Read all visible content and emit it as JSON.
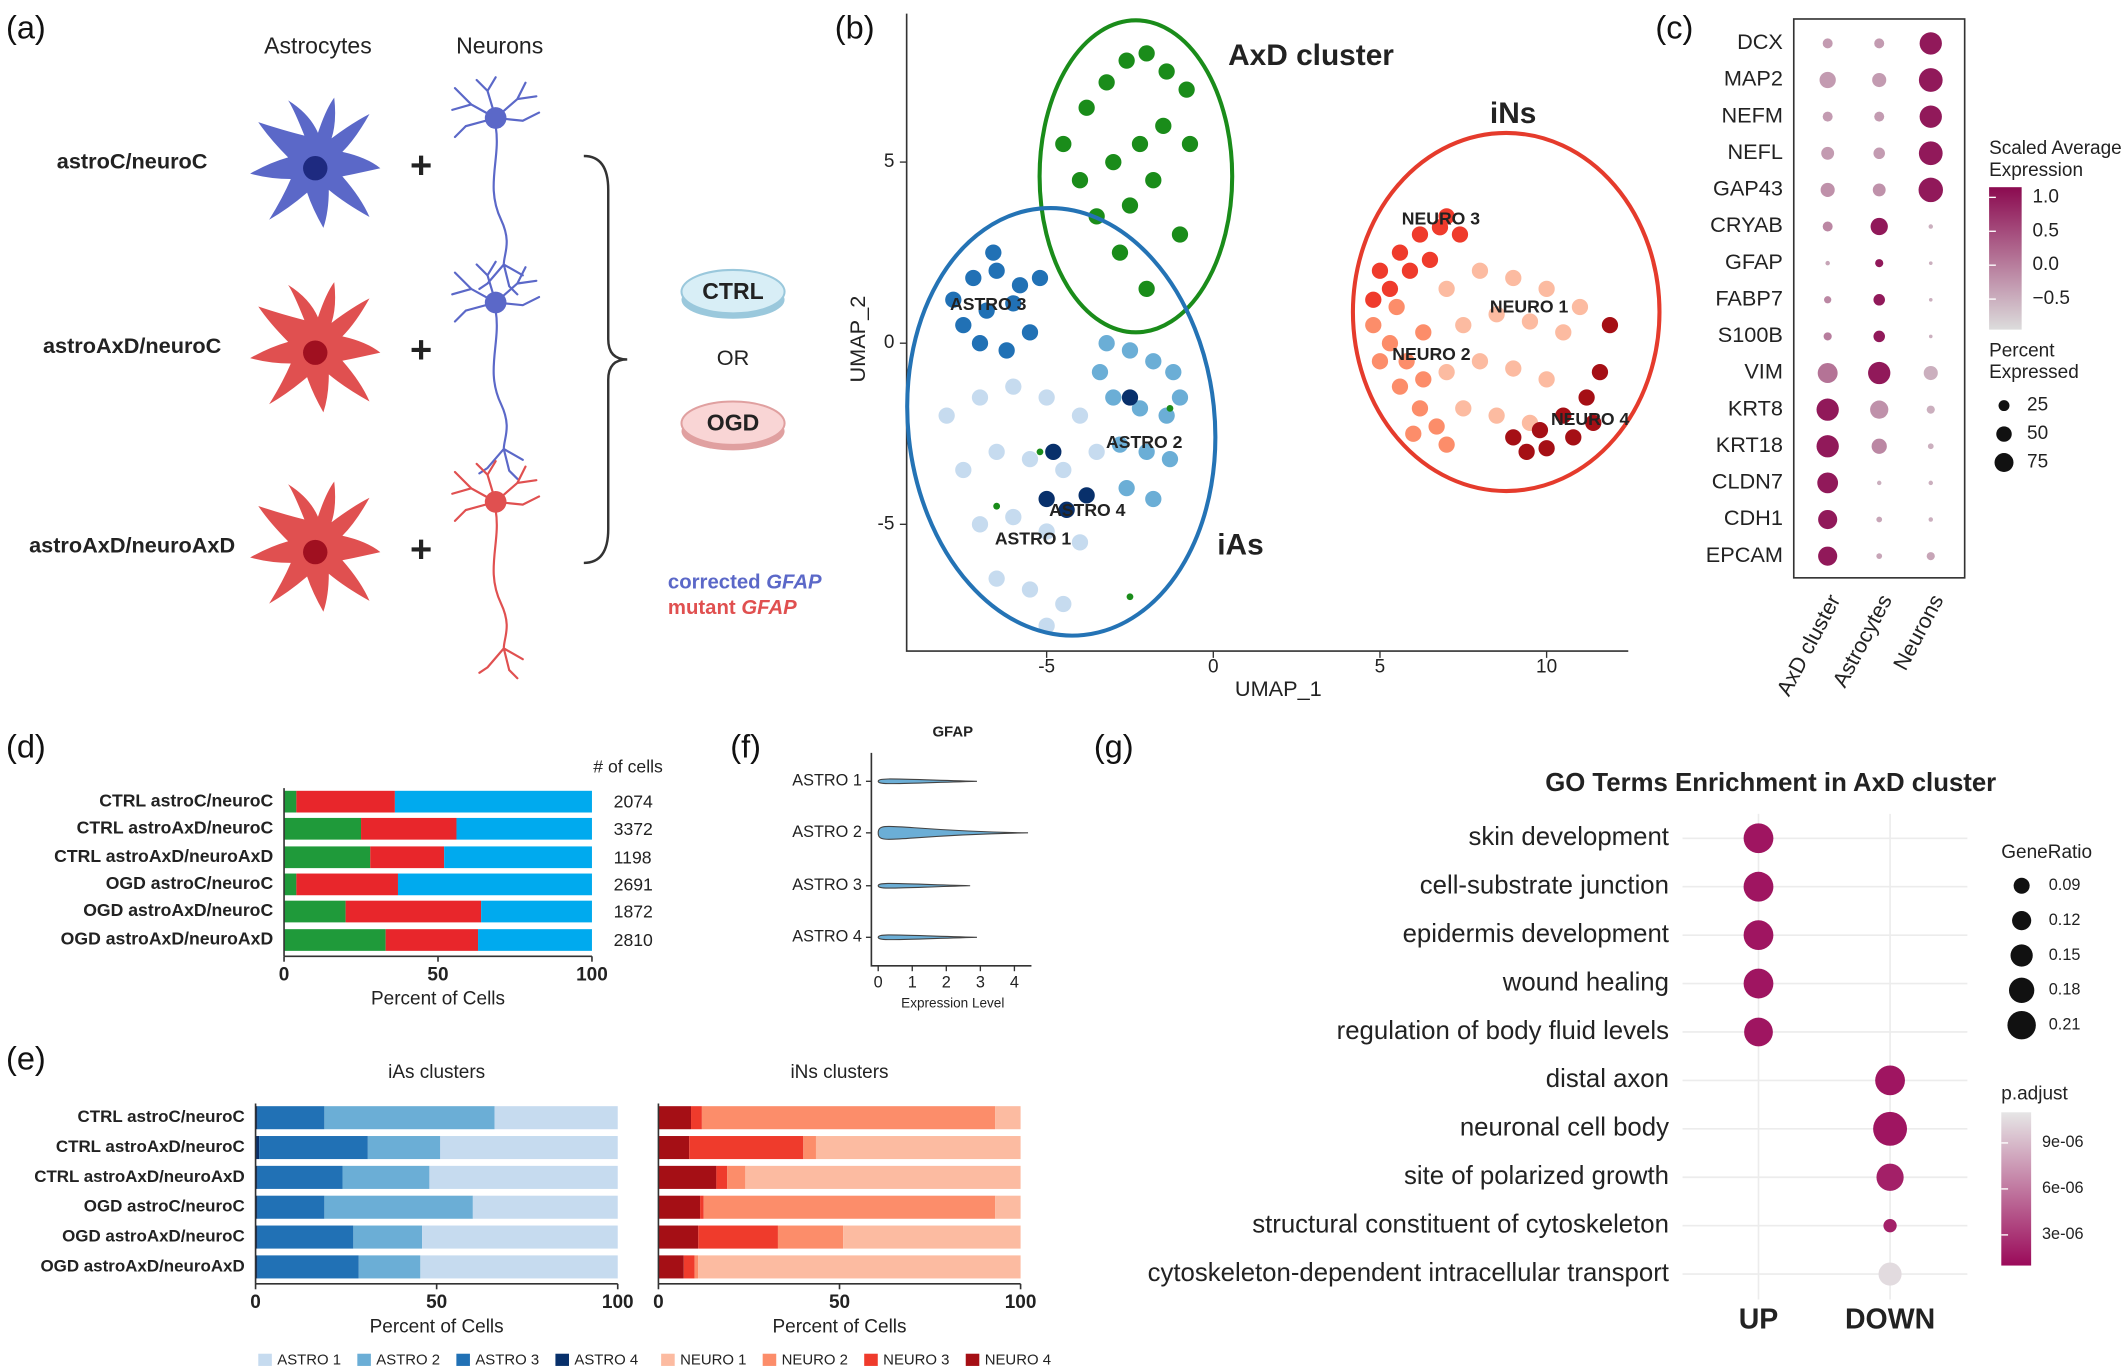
{
  "panel_labels": [
    "(a)",
    "(b)",
    "(c)",
    "(d)",
    "(e)",
    "(f)",
    "(g)"
  ],
  "diagram": {
    "cell_types": [
      "Astrocytes",
      "Neurons"
    ],
    "conditions": [
      "astroC/neuroC",
      "astroAxD/neuroC",
      "astroAxD/neuroAxD"
    ],
    "plus": "+",
    "dishes": [
      "CTRL",
      "OGD"
    ],
    "or": "OR",
    "legend": [
      {
        "prefix": "corrected",
        "gene": "GFAP",
        "color": "#5b68c8"
      },
      {
        "prefix": "mutant",
        "gene": "GFAP",
        "color": "#e05050"
      }
    ]
  },
  "chart_data": [
    {
      "type": "scatter",
      "xlabel": "UMAP_1",
      "ylabel": "UMAP_2",
      "xlim": [
        -9.2,
        12.45
      ],
      "ylim": [
        -8.5,
        9.1
      ],
      "xticks": [
        -5,
        0,
        5,
        10
      ],
      "yticks": [
        -5,
        0,
        5
      ],
      "annotations": [
        {
          "text": "iAs",
          "color": "#2473b5"
        },
        {
          "text": "iNs",
          "color": "#e53b2c"
        }
      ],
      "series": [
        {
          "name": "AxD cluster",
          "color": "#1a8c1a",
          "x": [
            -4.5,
            -3.8,
            -3.2,
            -2.6,
            -2.0,
            -1.4,
            -0.8,
            -4.0,
            -3.0,
            -2.2,
            -1.5,
            -0.7,
            -3.5,
            -2.5,
            -1.8,
            -1.0,
            -2.8,
            -2.0,
            -6.5,
            -5.2,
            -1.3,
            -2.5
          ],
          "y": [
            5.5,
            6.5,
            7.2,
            7.8,
            8.0,
            7.5,
            7.0,
            4.5,
            5.0,
            5.5,
            6.0,
            5.5,
            3.5,
            3.8,
            4.5,
            3.0,
            2.5,
            1.5,
            -4.5,
            -3.0,
            -1.8,
            -7.0
          ]
        },
        {
          "name": "ASTRO 1",
          "color": "#c6dbef",
          "x": [
            -8.0,
            -7.0,
            -6.0,
            -5.0,
            -4.0,
            -7.5,
            -6.5,
            -5.5,
            -4.5,
            -3.5,
            -7.0,
            -6.0,
            -5.0,
            -4.0,
            -6.5,
            -5.5,
            -4.5,
            -5.0
          ],
          "y": [
            -2.0,
            -1.5,
            -1.2,
            -1.5,
            -2.0,
            -3.5,
            -3.0,
            -3.2,
            -3.5,
            -3.0,
            -5.0,
            -4.8,
            -5.2,
            -5.5,
            -6.5,
            -6.8,
            -7.2,
            -7.8
          ]
        },
        {
          "name": "ASTRO 2",
          "color": "#6baed6",
          "x": [
            -3.2,
            -2.5,
            -1.8,
            -1.2,
            -3.0,
            -2.2,
            -1.4,
            -2.8,
            -2.0,
            -1.3,
            -2.6,
            -1.8,
            -3.4,
            -1.0
          ],
          "y": [
            0.0,
            -0.2,
            -0.5,
            -0.8,
            -1.5,
            -1.8,
            -2.0,
            -2.8,
            -3.0,
            -3.2,
            -4.0,
            -4.3,
            -0.8,
            -1.5
          ]
        },
        {
          "name": "ASTRO 3",
          "color": "#2171b5",
          "x": [
            -7.8,
            -7.2,
            -6.5,
            -5.8,
            -7.5,
            -6.8,
            -6.0,
            -5.5,
            -7.0,
            -6.2,
            -5.2,
            -6.6
          ],
          "y": [
            1.2,
            1.8,
            2.0,
            1.6,
            0.5,
            0.9,
            1.1,
            0.3,
            0.0,
            -0.2,
            1.8,
            2.5
          ]
        },
        {
          "name": "ASTRO 4",
          "color": "#08306b",
          "x": [
            -5.0,
            -4.4,
            -3.8,
            -4.8,
            -2.5
          ],
          "y": [
            -4.3,
            -4.6,
            -4.2,
            -3.0,
            -1.5
          ]
        },
        {
          "name": "NEURO 1",
          "color": "#fcbba1",
          "x": [
            7.0,
            8.0,
            9.0,
            10.0,
            7.5,
            8.5,
            9.5,
            10.5,
            7.0,
            8.0,
            9.0,
            10.0,
            8.5,
            9.5,
            7.5,
            11.0
          ],
          "y": [
            1.5,
            2.0,
            1.8,
            1.5,
            0.5,
            0.8,
            0.6,
            0.3,
            -0.8,
            -0.5,
            -0.7,
            -1.0,
            -2.0,
            -2.2,
            -1.8,
            1.0
          ]
        },
        {
          "name": "NEURO 2",
          "color": "#fc8d6a",
          "x": [
            4.8,
            5.3,
            5.8,
            6.3,
            5.0,
            5.6,
            6.2,
            6.7,
            5.5,
            6.3,
            7.0,
            6.0
          ],
          "y": [
            0.5,
            0.0,
            -0.5,
            -1.0,
            -0.5,
            -1.2,
            -1.8,
            -2.3,
            1.0,
            0.3,
            -2.8,
            -2.5
          ]
        },
        {
          "name": "NEURO 3",
          "color": "#ef3b2c",
          "x": [
            5.0,
            5.6,
            6.2,
            6.8,
            7.4,
            5.3,
            5.9,
            6.5,
            4.8,
            7.0
          ],
          "y": [
            2.0,
            2.5,
            3.0,
            3.2,
            3.0,
            1.5,
            2.0,
            2.3,
            1.2,
            3.5
          ]
        },
        {
          "name": "NEURO 4",
          "color": "#a50f15",
          "x": [
            9.0,
            9.8,
            10.5,
            11.2,
            11.6,
            10.8,
            11.9,
            10.0,
            11.4,
            9.4
          ],
          "y": [
            -2.6,
            -2.4,
            -2.0,
            -1.5,
            -0.8,
            -2.6,
            0.5,
            -2.9,
            -2.2,
            -3.0
          ]
        }
      ]
    },
    {
      "type": "dotplot",
      "categories": [
        "DCX",
        "MAP2",
        "NEFM",
        "NEFL",
        "GAP43",
        "CRYAB",
        "GFAP",
        "FABP7",
        "S100B",
        "VIM",
        "KRT8",
        "KRT18",
        "CLDN7",
        "CDH1",
        "EPCAM"
      ],
      "series": [
        {
          "name": "AxD cluster",
          "values": [
            -0.3,
            -0.3,
            -0.3,
            -0.3,
            -0.2,
            -0.1,
            -0.4,
            -0.1,
            0.0,
            0.1,
            1.0,
            1.0,
            1.0,
            1.0,
            1.0
          ],
          "sizes": [
            15,
            40,
            15,
            25,
            30,
            15,
            3,
            8,
            10,
            60,
            75,
            75,
            65,
            55,
            55
          ]
        },
        {
          "name": "Astrocytes",
          "values": [
            -0.3,
            -0.3,
            -0.3,
            -0.3,
            -0.2,
            1.0,
            1.0,
            1.0,
            1.0,
            1.0,
            -0.2,
            -0.1,
            -0.5,
            -0.4,
            -0.4
          ],
          "sizes": [
            15,
            30,
            15,
            20,
            25,
            45,
            10,
            20,
            20,
            75,
            50,
            35,
            3,
            5,
            5
          ]
        },
        {
          "name": "Neurons",
          "values": [
            1.0,
            1.0,
            1.0,
            1.0,
            1.0,
            -0.5,
            -0.5,
            -0.5,
            -0.5,
            -0.5,
            -0.5,
            -0.5,
            -0.5,
            -0.5,
            -0.4
          ],
          "sizes": [
            75,
            85,
            75,
            85,
            90,
            3,
            2,
            2,
            2,
            30,
            10,
            5,
            3,
            3,
            10
          ]
        }
      ],
      "color_title": [
        "Scaled Average",
        "Expression"
      ],
      "clim": [
        -0.95,
        1.15
      ],
      "colors": [
        "#dcdcdc",
        "#8b0a50"
      ],
      "color_ticks": [
        {
          "value": 1,
          "label": "1.0"
        },
        0.5,
        {
          "value": 0,
          "label": "0.0"
        },
        {
          "value": -0.5,
          "label": "−0.5"
        }
      ],
      "size_title": [
        "Percent",
        "Expressed"
      ],
      "size_ticks": [
        25,
        50,
        75
      ]
    },
    {
      "type": "stacked-bar-h",
      "categories": [
        "CTRL astroC/neuroC",
        "CTRL astroAxD/neuroC",
        "CTRL astroAxD/neuroAxD",
        "OGD astroC/neuroC",
        "OGD astroAxD/neuroC",
        "OGD astroAxD/neuroAxD"
      ],
      "series": [
        {
          "color": "#1f9a3a",
          "values": [
            4,
            25,
            28,
            4,
            20,
            33
          ]
        },
        {
          "color": "#e8262b",
          "values": [
            32,
            31,
            24,
            33,
            44,
            30
          ]
        },
        {
          "color": "#00aaee",
          "values": [
            64,
            44,
            48,
            63,
            36,
            37
          ]
        }
      ],
      "xlabel": "Percent of Cells",
      "xlim": [
        0,
        100
      ],
      "xticks": [
        0,
        50,
        100
      ],
      "counts_title": "# of cells",
      "counts": [
        2074,
        3372,
        1198,
        2691,
        1872,
        2810
      ]
    },
    {
      "type": "stacked-bar-h",
      "title": "iAs clusters",
      "categories": [
        "CTRL astroC/neuroC",
        "CTRL astroAxD/neuroC",
        "CTRL astroAxD/neuroAxD",
        "OGD astroC/neuroC",
        "OGD astroAxD/neuroC",
        "OGD astroAxD/neuroAxD"
      ],
      "series": [
        {
          "name": "ASTRO 1",
          "color": "#c6dbef",
          "values": [
            34,
            49,
            52,
            40,
            54,
            54.5
          ]
        },
        {
          "name": "ASTRO 2",
          "color": "#6baed6",
          "values": [
            47,
            20,
            24,
            41,
            19,
            17
          ]
        },
        {
          "name": "ASTRO 3",
          "color": "#2171b5",
          "values": [
            18.5,
            30,
            23.5,
            18.5,
            26.5,
            28
          ]
        },
        {
          "name": "ASTRO 4",
          "color": "#08306b",
          "values": [
            0.5,
            1,
            0.5,
            0.5,
            0.5,
            0.5
          ]
        }
      ],
      "xlabel": "Percent of Cells",
      "xlim": [
        0,
        100
      ],
      "xticks": [
        0,
        50,
        100
      ]
    },
    {
      "type": "stacked-bar-h",
      "title": "iNs clusters",
      "series": [
        {
          "name": "NEURO 1",
          "color": "#fcbba1",
          "values": [
            7,
            56.5,
            76,
            7,
            49,
            89
          ]
        },
        {
          "name": "NEURO 2",
          "color": "#fc8d6a",
          "values": [
            81,
            3.5,
            5,
            80.5,
            18,
            1
          ]
        },
        {
          "name": "NEURO 3",
          "color": "#ef3b2c",
          "values": [
            3,
            31.5,
            3,
            1,
            22,
            3
          ]
        },
        {
          "name": "NEURO 4",
          "color": "#a50f15",
          "values": [
            9,
            8.5,
            16,
            11.5,
            11,
            7
          ]
        }
      ],
      "xlabel": "Percent of Cells",
      "xlim": [
        0,
        100
      ],
      "xticks": [
        0,
        50,
        100
      ]
    },
    {
      "type": "violin",
      "title": "GFAP",
      "categories": [
        "ASTRO 1",
        "ASTRO 2",
        "ASTRO 3",
        "ASTRO 4"
      ],
      "values": [
        2.9,
        4.4,
        2.7,
        2.9
      ],
      "color": "#6baed6",
      "xlabel": "Expression Level",
      "xlim": [
        -0.2,
        4.5
      ],
      "xticks": [
        0,
        1,
        2,
        3,
        4
      ]
    },
    {
      "type": "dotplot-go",
      "title": "GO Terms Enrichment in AxD cluster",
      "categories": [
        "skin development",
        "cell-substrate junction",
        "epidermis development",
        "wound healing",
        "regulation of body fluid levels",
        "distal axon",
        "neuronal cell body",
        "site of polarized growth",
        "structural constituent of cytoskeleton",
        "cytoskeleton-dependent intracellular transport"
      ],
      "groups": [
        "UP",
        "DOWN"
      ],
      "x": [
        "UP",
        "UP",
        "UP",
        "UP",
        "UP",
        "DOWN",
        "DOWN",
        "DOWN",
        "DOWN",
        "DOWN"
      ],
      "sizes": [
        0.21,
        0.21,
        0.21,
        0.21,
        0.2,
        0.21,
        0.25,
        0.185,
        0.05,
        0.145
      ],
      "values": [
        1.5e-06,
        1.5e-06,
        1.5e-06,
        1.5e-06,
        1.5e-06,
        1.5e-06,
        1.5e-06,
        2e-06,
        2e-06,
        1.05e-05
      ],
      "size_title": "GeneRatio",
      "size_ticks": [
        0.09,
        0.12,
        0.15,
        0.18,
        0.21
      ],
      "color_title": "p.adjust",
      "clim": [
        1e-06,
        1.1e-05
      ],
      "colors": [
        "#9b0a5a",
        "#e6e6e6"
      ],
      "color_ticks": [
        {
          "value": 9e-06,
          "label": "9e-06"
        },
        {
          "value": 6e-06,
          "label": "6e-06"
        },
        {
          "value": 3e-06,
          "label": "3e-06"
        }
      ]
    }
  ]
}
